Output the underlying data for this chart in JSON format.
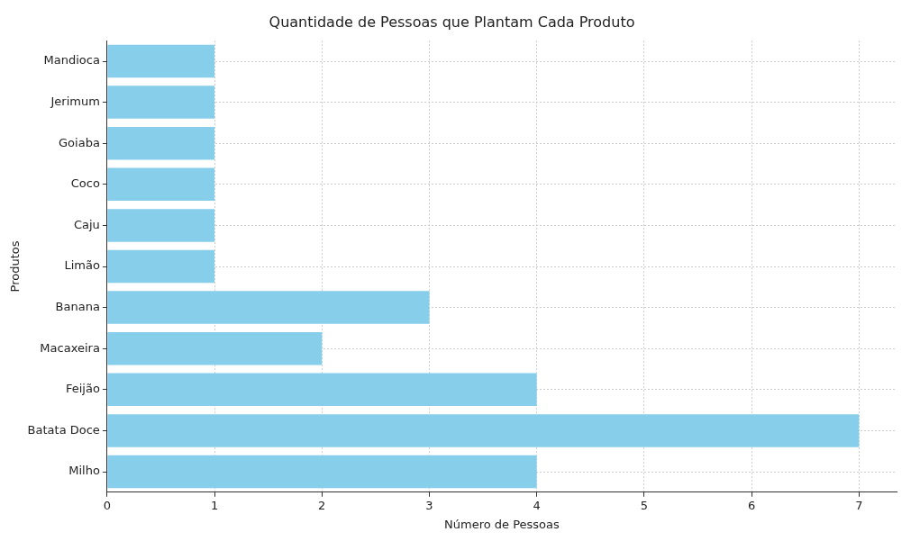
{
  "chart_data": {
    "type": "bar",
    "orientation": "horizontal",
    "title": "Quantidade de Pessoas que Plantam Cada Produto",
    "xlabel": "Número de Pessoas",
    "ylabel": "Produtos",
    "categories": [
      "Mandioca",
      "Jerimum",
      "Goiaba",
      "Coco",
      "Caju",
      "Limão",
      "Banana",
      "Macaxeira",
      "Feijão",
      "Batata Doce",
      "Milho"
    ],
    "values": [
      1,
      1,
      1,
      1,
      1,
      1,
      3,
      2,
      4,
      7,
      4
    ],
    "color": "#87ceeb",
    "xlim": [
      0,
      7.35
    ],
    "xticks": [
      0,
      1,
      2,
      3,
      4,
      5,
      6,
      7
    ],
    "grid": true,
    "legend": false
  }
}
